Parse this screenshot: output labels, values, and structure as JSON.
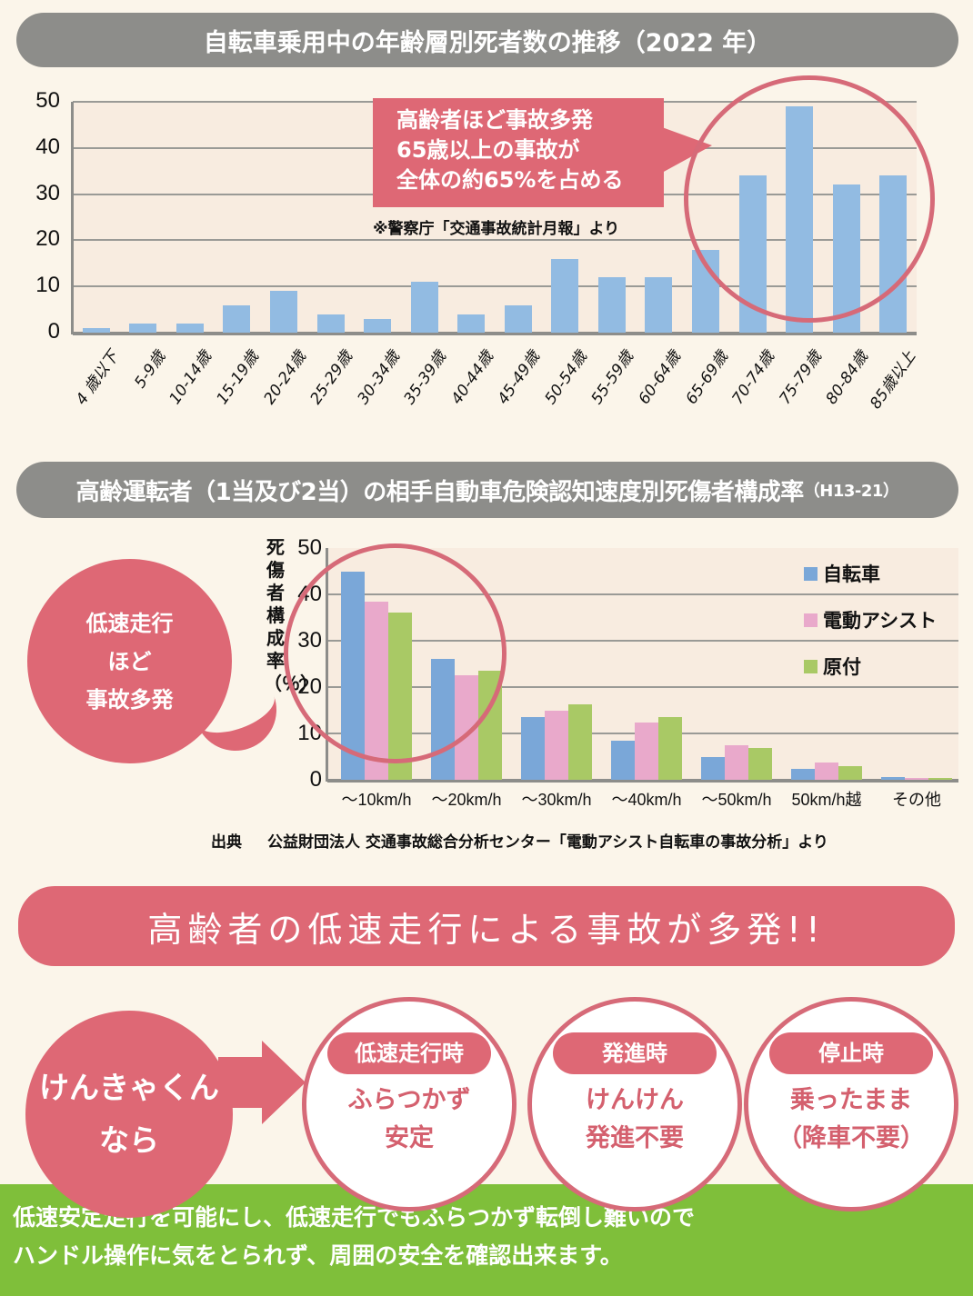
{
  "banner1": {
    "title": "自転車乗用中の年齢層別死者数の推移（2022 年）"
  },
  "banner2": {
    "title_main": "高齢運転者（1当及び2当）の相手自動車危険認知速度別死傷者構成率",
    "title_suffix": "（H13-21）"
  },
  "banner3": {
    "title": "高齢者の低速走行による事故が多発!!"
  },
  "chart1": {
    "callout": {
      "line1": "高齢者ほど事故多発",
      "line2": "65歳以上の事故が",
      "line3": "全体の約65%を占める"
    },
    "note": "※警察庁「交通事故統計月報」より"
  },
  "chart2": {
    "ylabel": "死傷者構成率（％）",
    "bubble": {
      "line1": "低速走行",
      "line2": "ほど",
      "line3": "事故多発"
    },
    "source_label": "出典",
    "source_text": "公益財団法人 交通事故総合分析センター「電動アシスト自転車の事故分析」より"
  },
  "colors": {
    "bar1": "#92bbe2",
    "bicycle": "#7aa7d8",
    "assist": "#e9a9cb",
    "moped": "#a9c965",
    "accent": "#de6875",
    "banner_gray": "#8d8d8a",
    "footer_green": "#7fbf3a"
  },
  "solution": {
    "lead": {
      "line1": "けんきゃくん",
      "line2": "なら"
    },
    "features": [
      {
        "title": "低速走行時",
        "line1": "ふらつかず",
        "line2": "安定"
      },
      {
        "title": "発進時",
        "line1": "けんけん",
        "line2": "発進不要"
      },
      {
        "title": "停止時",
        "line1": "乗ったまま",
        "line2": "（降車不要）"
      }
    ]
  },
  "footer": {
    "line1": "低速安定走行を可能にし、低速走行でもふらつかず転倒し難いので",
    "line2": "ハンドル操作に気をとられず、周囲の安全を確認出来ます。"
  },
  "chart_data": [
    {
      "type": "bar",
      "title": "自転車乗用中の年齢層別死者数の推移（2022 年）",
      "xlabel": "",
      "ylabel": "",
      "ylim": [
        0,
        50
      ],
      "yticks": [
        0,
        10,
        20,
        30,
        40,
        50
      ],
      "grid": true,
      "categories": [
        "4 歳以下",
        "5-9歳",
        "10-14歳",
        "15-19歳",
        "20-24歳",
        "25-29歳",
        "30-34歳",
        "35-39歳",
        "40-44歳",
        "45-49歳",
        "50-54歳",
        "55-59歳",
        "60-64歳",
        "65-69歳",
        "70-74歳",
        "75-79歳",
        "80-84歳",
        "85歳以上"
      ],
      "values": [
        1,
        2,
        2,
        6,
        9,
        4,
        3,
        11,
        4,
        6,
        16,
        12,
        12,
        18,
        34,
        49,
        32,
        34
      ],
      "annotations": [
        "高齢者ほど事故多発 65歳以上の事故が 全体の約65%を占める",
        "※警察庁「交通事故統計月報」より"
      ]
    },
    {
      "type": "bar",
      "title": "高齢運転者（1当及び2当）の相手自動車危険認知速度別死傷者構成率（H13-21）",
      "xlabel": "",
      "ylabel": "死傷者構成率（％）",
      "ylim": [
        0,
        50
      ],
      "yticks": [
        0,
        10,
        20,
        30,
        40,
        50
      ],
      "grid": true,
      "legend_position": "top-right",
      "categories": [
        "～10km/h",
        "～20km/h",
        "～30km/h",
        "～40km/h",
        "～50km/h",
        "50km/h越",
        "その他"
      ],
      "series": [
        {
          "name": "自転車",
          "values": [
            45,
            26,
            13.5,
            8.5,
            5,
            2.3,
            0.5
          ]
        },
        {
          "name": "電動アシスト",
          "values": [
            38.5,
            22.5,
            15,
            12.3,
            7.5,
            3.7,
            0.3
          ]
        },
        {
          "name": "原付",
          "values": [
            36,
            23.5,
            16.3,
            13.5,
            6.8,
            3,
            0.3
          ]
        }
      ],
      "annotations": [
        "低速走行ほど事故多発",
        "出典 公益財団法人 交通事故総合分析センター「電動アシスト自転車の事故分析」より"
      ]
    }
  ]
}
